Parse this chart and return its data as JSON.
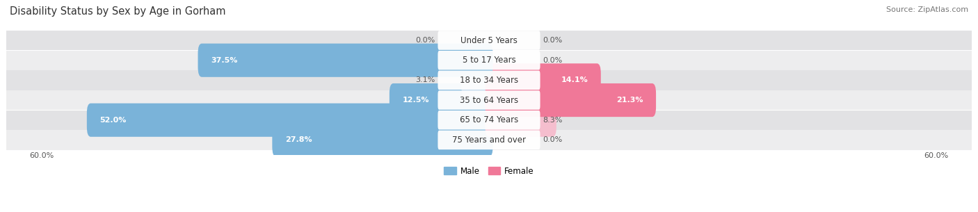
{
  "title": "Disability Status by Sex by Age in Gorham",
  "source": "Source: ZipAtlas.com",
  "categories": [
    "Under 5 Years",
    "5 to 17 Years",
    "18 to 34 Years",
    "35 to 64 Years",
    "65 to 74 Years",
    "75 Years and over"
  ],
  "male_values": [
    0.0,
    37.5,
    3.1,
    12.5,
    52.0,
    27.8
  ],
  "female_values": [
    0.0,
    0.0,
    14.1,
    21.3,
    8.3,
    0.0
  ],
  "male_color": "#7ab3d9",
  "female_color": "#f07898",
  "male_color_light": "#b8d4ea",
  "female_color_light": "#f5bece",
  "row_bg_even": "#ededee",
  "row_bg_odd": "#e2e2e4",
  "xlim": 60.0,
  "legend_male": "Male",
  "legend_female": "Female",
  "title_fontsize": 10.5,
  "source_fontsize": 8,
  "label_fontsize": 8,
  "category_fontsize": 8.5
}
